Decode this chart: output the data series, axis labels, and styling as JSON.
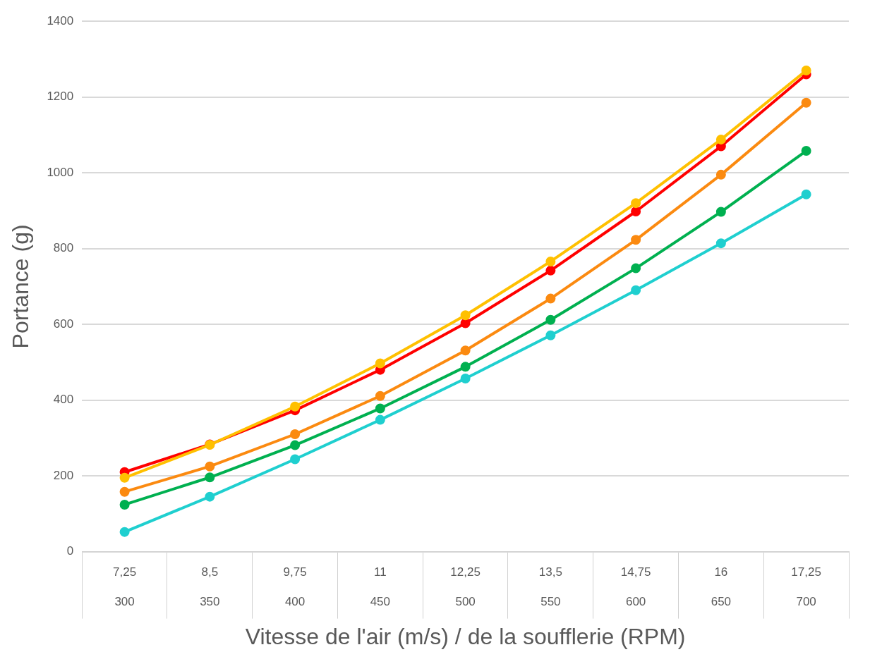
{
  "chart_data": {
    "type": "line",
    "xlabel": "Vitesse de l'air (m/s) / de la soufflerie (RPM)",
    "ylabel": "Portance (g)",
    "categories": [
      "7,25\n300",
      "8,5\n350",
      "9,75\n400",
      "11\n450",
      "12,25\n500",
      "13,5\n550",
      "14,75\n600",
      "16\n650",
      "17,25\n700"
    ],
    "series": [
      {
        "color": "#1fcfcf",
        "values": [
          52,
          145,
          244,
          348,
          457,
          571,
          690,
          814,
          943
        ]
      },
      {
        "color": "#00b050",
        "values": [
          124,
          196,
          281,
          378,
          488,
          612,
          748,
          897,
          1058
        ]
      },
      {
        "color": "#fb8a10",
        "values": [
          158,
          225,
          310,
          411,
          531,
          668,
          823,
          995,
          1185
        ]
      },
      {
        "color": "#ff0000",
        "values": [
          210,
          283,
          373,
          480,
          603,
          742,
          898,
          1070,
          1260
        ]
      },
      {
        "color": "#ffc000",
        "values": [
          195,
          282,
          383,
          497,
          624,
          766,
          920,
          1088,
          1270
        ]
      }
    ],
    "ylim": [
      0,
      1400
    ],
    "yticks": [
      0,
      200,
      400,
      600,
      800,
      1000,
      1200,
      1400
    ],
    "grid": "y",
    "marker": "circle",
    "line_style": "solid",
    "legend": false
  }
}
